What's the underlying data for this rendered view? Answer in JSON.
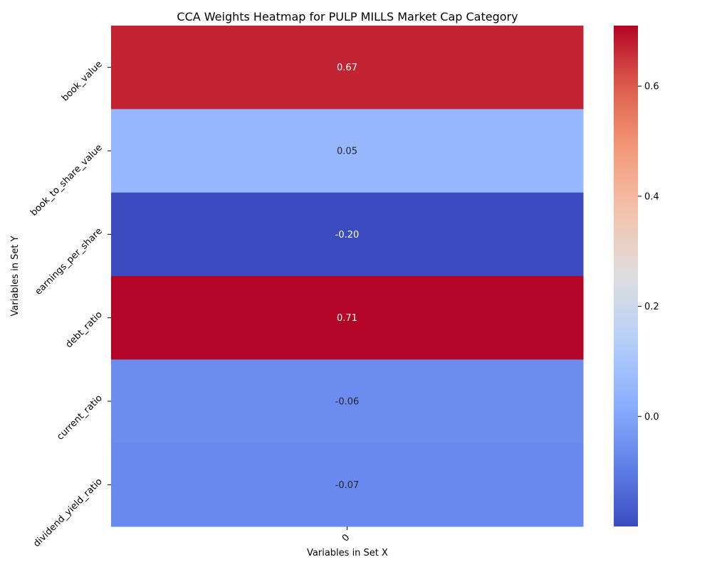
{
  "chart_data": {
    "type": "heatmap",
    "title": "CCA Weights Heatmap for PULP MILLS Market Cap Category",
    "xlabel": "Variables in Set X",
    "ylabel": "Variables in Set Y",
    "x_categories": [
      "0"
    ],
    "y_categories": [
      "book_value",
      "book_to_share_value",
      "earnings_per_share",
      "debt_ratio",
      "current_ratio",
      "dividend_yield_ratio"
    ],
    "values": [
      [
        0.67
      ],
      [
        0.05
      ],
      [
        -0.2
      ],
      [
        0.71
      ],
      [
        -0.06
      ],
      [
        -0.07
      ]
    ],
    "value_labels": [
      [
        "0.67"
      ],
      [
        "0.05"
      ],
      [
        "-0.20"
      ],
      [
        "0.71"
      ],
      [
        "-0.06"
      ],
      [
        "-0.07"
      ]
    ],
    "colormap": "coolwarm",
    "color_range": [
      -0.2,
      0.71
    ],
    "colorbar_ticks": [
      0.0,
      0.2,
      0.4,
      0.6
    ],
    "colorbar_tick_labels": [
      "0.0",
      "0.2",
      "0.4",
      "0.6"
    ],
    "x_tick_rotation": "45°",
    "y_tick_rotation": "45°"
  }
}
